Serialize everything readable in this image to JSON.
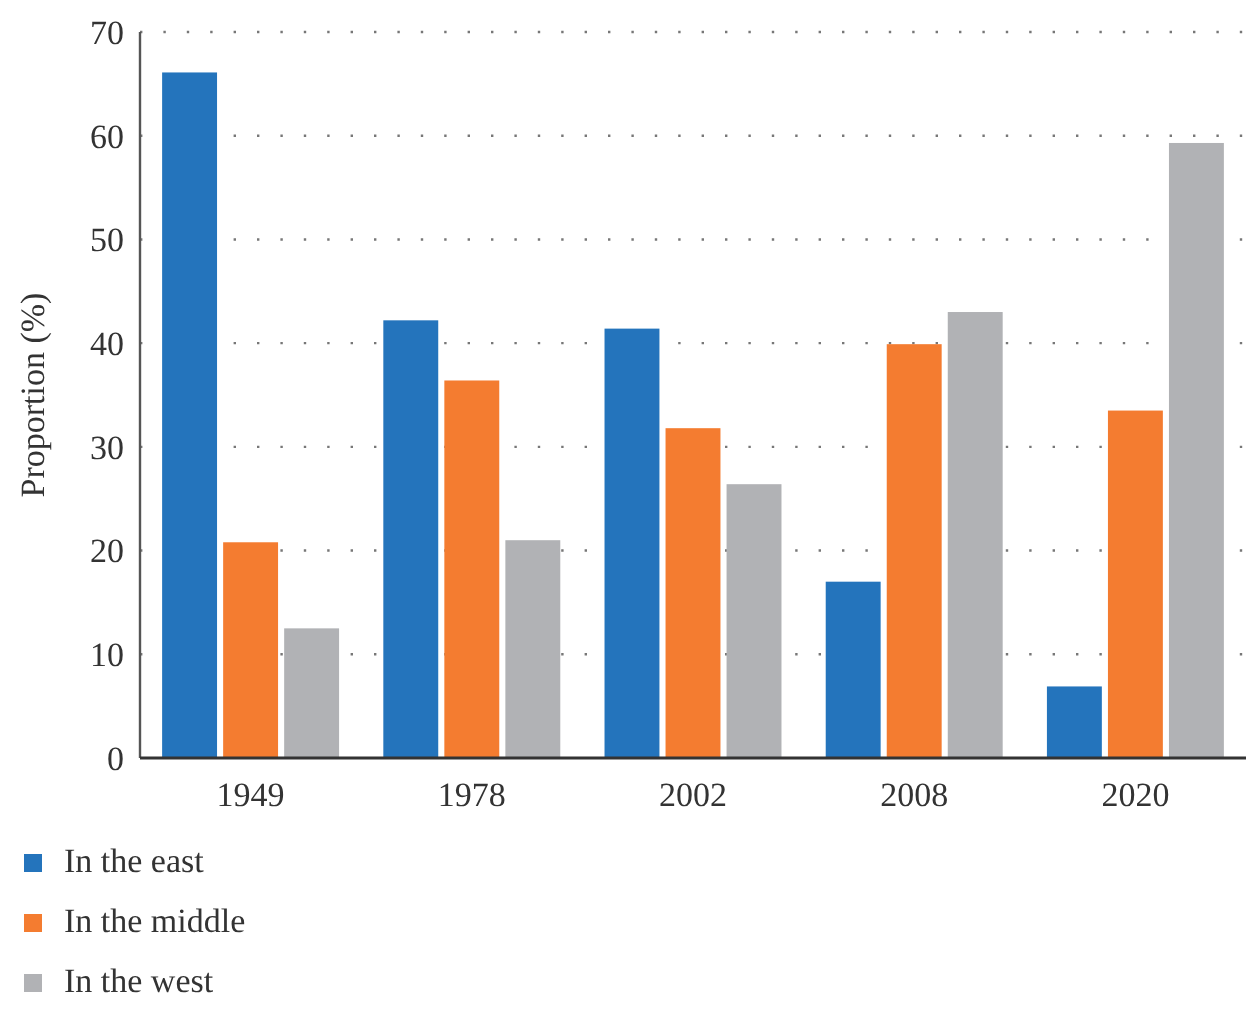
{
  "chart_data": {
    "type": "bar",
    "ylabel": "Proportion (%)",
    "categories": [
      "1949",
      "1978",
      "2002",
      "2008",
      "2020"
    ],
    "series": [
      {
        "name": "In the east",
        "color": "#2474bc",
        "values": [
          66.1,
          42.2,
          41.4,
          17.0,
          6.9
        ]
      },
      {
        "name": "In the middle",
        "color": "#f47c30",
        "values": [
          20.8,
          36.4,
          31.8,
          39.9,
          33.5
        ]
      },
      {
        "name": "In the west",
        "color": "#b1b2b5",
        "values": [
          12.5,
          21.0,
          26.4,
          43.0,
          59.3
        ]
      }
    ],
    "ylim": [
      0,
      70
    ],
    "yticks": [
      0,
      10,
      20,
      30,
      40,
      50,
      60,
      70
    ],
    "grid": "y",
    "legend": "bottom"
  }
}
